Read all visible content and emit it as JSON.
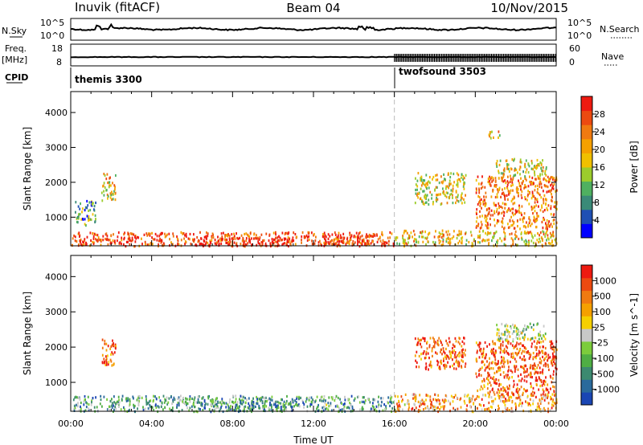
{
  "header": {
    "radar": "Inuvik (fitACF)",
    "beam": "Beam 04",
    "date": "10/Nov/2015"
  },
  "top_panels": {
    "nsky_label": "N.Sky",
    "nsky_ticks": [
      "10^5",
      "10^0"
    ],
    "nsearch_label": "N.Search",
    "nsearch_ticks": [
      "10^5",
      "10^0"
    ],
    "freq_label": "Freq.",
    "freq_unit": "[MHz]",
    "freq_ticks": [
      "18",
      "8"
    ],
    "nave_label": "Nave",
    "nave_ticks": [
      "60",
      "0"
    ],
    "cpid_label": "CPID",
    "cpid_segments": [
      {
        "name": "themis 3300",
        "start_hour": 0,
        "end_hour": 16
      },
      {
        "name": "twofsound 3503",
        "start_hour": 16,
        "end_hour": 24
      }
    ]
  },
  "chart_data": [
    {
      "type": "heatmap",
      "name": "power",
      "ylabel": "Slant Range [km]",
      "yticks": [
        1000,
        2000,
        3000,
        4000
      ],
      "ylim": [
        180,
        4600
      ],
      "xlim": [
        0,
        24
      ],
      "colorbar": {
        "label": "Power [dB]",
        "ticks": [
          "4",
          "8",
          "12",
          "16",
          "20",
          "24",
          "28"
        ],
        "colors": [
          "#0000ff",
          "#1f50b4",
          "#3a8a78",
          "#4fb060",
          "#9ccc2c",
          "#f0c000",
          "#f5a000",
          "#f07a10",
          "#ec4a10",
          "#ee1a10"
        ]
      },
      "echo_regions": [
        {
          "x0": 0.0,
          "x1": 16.0,
          "y0": 200,
          "y1": 600,
          "level": 0.85
        },
        {
          "x0": 0.2,
          "x1": 1.2,
          "y0": 800,
          "y1": 1500,
          "level": 0.3
        },
        {
          "x0": 1.5,
          "x1": 2.2,
          "y0": 1500,
          "y1": 2300,
          "level": 0.6
        },
        {
          "x0": 6.0,
          "x1": 11.0,
          "y0": 200,
          "y1": 450,
          "level": 0.95
        },
        {
          "x0": 12.5,
          "x1": 15.0,
          "y0": 250,
          "y1": 550,
          "level": 0.9
        },
        {
          "x0": 16.0,
          "x1": 24.0,
          "y0": 200,
          "y1": 650,
          "level": 0.6
        },
        {
          "x0": 17.0,
          "x1": 19.5,
          "y0": 1400,
          "y1": 2300,
          "level": 0.55
        },
        {
          "x0": 20.0,
          "x1": 24.0,
          "y0": 700,
          "y1": 2200,
          "level": 0.75
        },
        {
          "x0": 21.0,
          "x1": 23.5,
          "y0": 2200,
          "y1": 2700,
          "level": 0.5
        },
        {
          "x0": 20.5,
          "x1": 21.2,
          "y0": 3300,
          "y1": 3500,
          "level": 0.6
        }
      ]
    },
    {
      "type": "heatmap",
      "name": "velocity",
      "ylabel": "Slant Range [km]",
      "yticks": [
        1000,
        2000,
        3000,
        4000
      ],
      "ylim": [
        180,
        4600
      ],
      "xlim": [
        0,
        24
      ],
      "xlabel": "Time UT",
      "xticks": [
        "00:00",
        "04:00",
        "08:00",
        "12:00",
        "16:00",
        "20:00",
        "00:00"
      ],
      "colorbar": {
        "label": "Velocity [m s^-1]",
        "ticks": [
          "1000",
          "500",
          "100",
          "25",
          "-25",
          "-100",
          "-500",
          "-1000"
        ],
        "colors": [
          "#1a46b4",
          "#2a6a9c",
          "#3c8a70",
          "#4fae44",
          "#7ccc3c",
          "#c8c8c8",
          "#f5d000",
          "#f5a000",
          "#f07a10",
          "#ec4a10",
          "#ee1a10"
        ]
      },
      "echo_regions": [
        {
          "x0": 0.0,
          "x1": 16.0,
          "y0": 200,
          "y1": 650,
          "level": 0.3
        },
        {
          "x0": 1.5,
          "x1": 2.2,
          "y0": 1500,
          "y1": 2300,
          "level": 0.8
        },
        {
          "x0": 6.0,
          "x1": 11.0,
          "y0": 200,
          "y1": 500,
          "level": 0.25
        },
        {
          "x0": 16.0,
          "x1": 24.0,
          "y0": 200,
          "y1": 700,
          "level": 0.7
        },
        {
          "x0": 17.0,
          "x1": 19.5,
          "y0": 1400,
          "y1": 2300,
          "level": 0.85
        },
        {
          "x0": 20.0,
          "x1": 24.0,
          "y0": 700,
          "y1": 2200,
          "level": 0.85
        },
        {
          "x0": 21.0,
          "x1": 23.5,
          "y0": 2200,
          "y1": 2700,
          "level": 0.45
        }
      ]
    }
  ]
}
